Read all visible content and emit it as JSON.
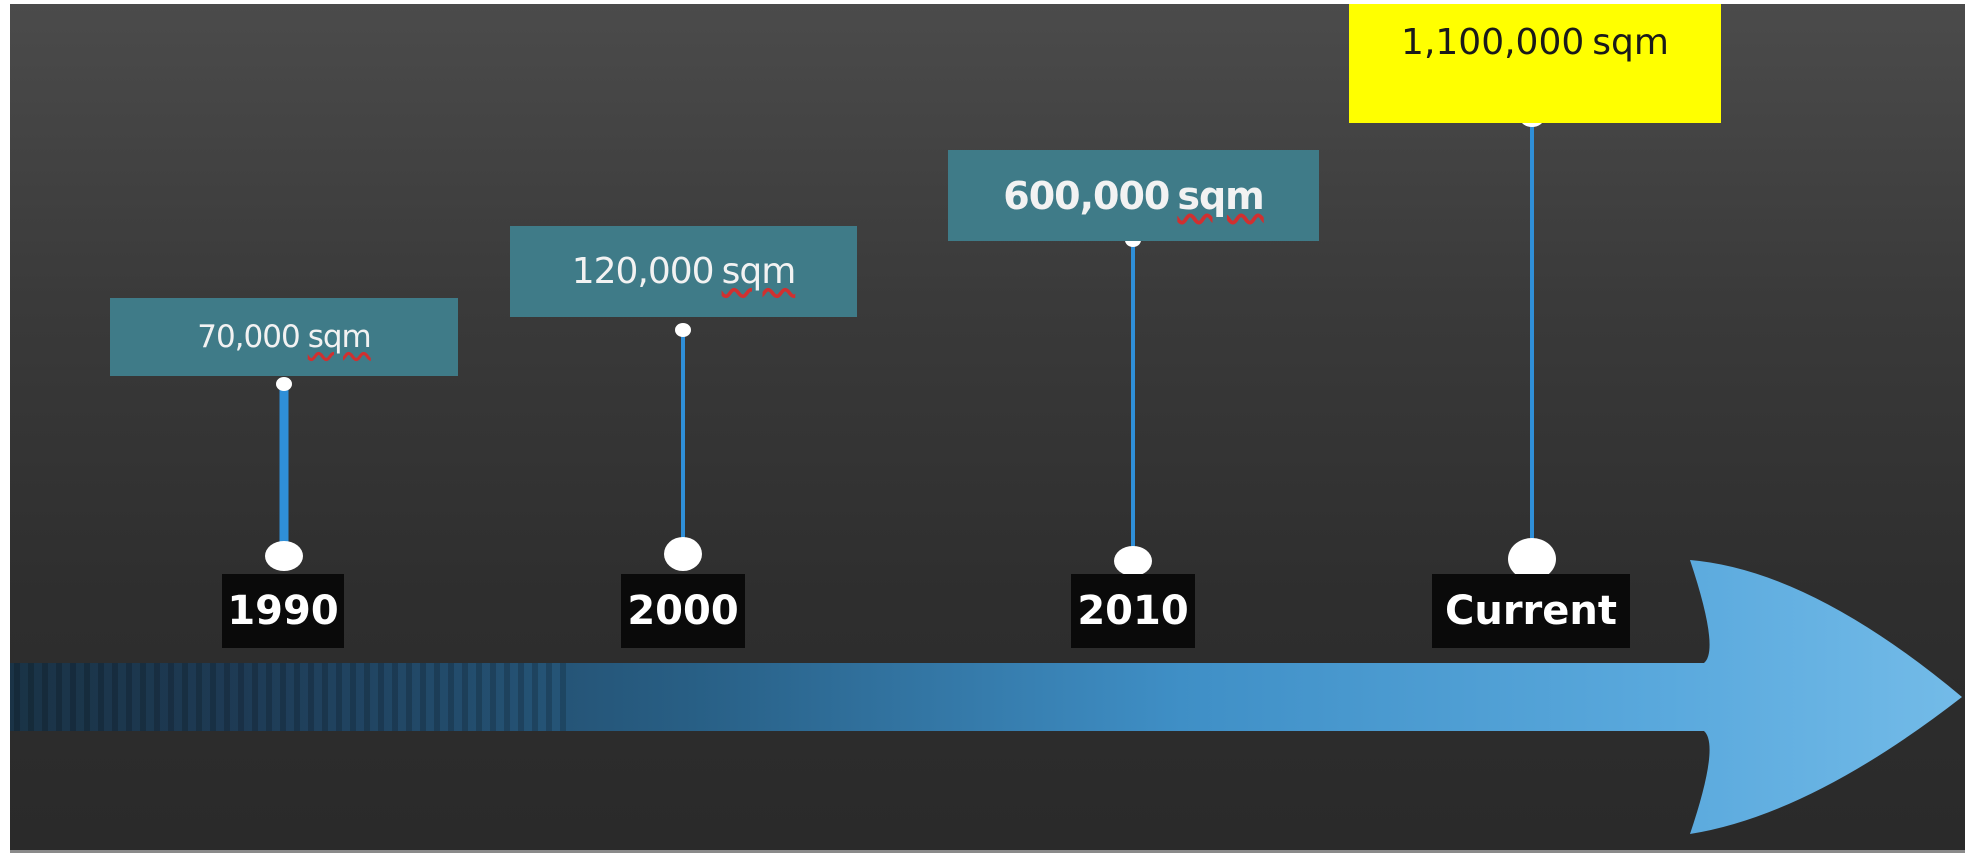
{
  "milestones": [
    {
      "year": "1990",
      "value": "70,000",
      "unit": "sqm"
    },
    {
      "year": "2000",
      "value": "120,000",
      "unit": "sqm"
    },
    {
      "year": "2010",
      "value": "600,000",
      "unit": "sqm"
    },
    {
      "year": "Current",
      "value": "1,100,000",
      "unit": "sqm"
    }
  ],
  "colors": {
    "value_box": "#3f7b88",
    "highlight_box": "#ffff00",
    "stem": "#2f8fd8",
    "arrow_light": "#6fb7e6",
    "arrow_dark": "#1e3b55",
    "year_label_bg": "#0a0a0a"
  }
}
